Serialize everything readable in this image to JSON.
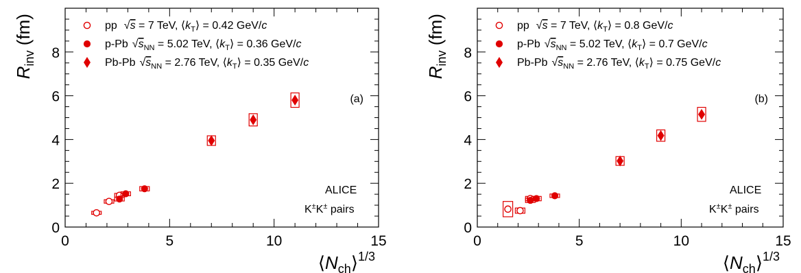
{
  "chart_data": [
    {
      "type": "scatter",
      "panel_label": "(a)",
      "xlim": [
        0,
        15
      ],
      "ylim": [
        0,
        10
      ],
      "xticks": [
        "0",
        "5",
        "10",
        "15"
      ],
      "yticks": [
        "0",
        "2",
        "4",
        "6",
        "8"
      ],
      "xlabel": "⟨Nch⟩1/3",
      "ylabel": "Rinv (fm)",
      "experiment": "ALICE",
      "pair_label": "K±K± pairs",
      "legend": [
        {
          "system": "pp",
          "energy": "√s = 7 TeV",
          "kt": "⟨kT⟩ = 0.42 GeV/c",
          "marker": "open-circle"
        },
        {
          "system": "p-Pb",
          "energy": "√sNN = 5.02 TeV",
          "kt": "⟨kT⟩ = 0.36 GeV/c",
          "marker": "filled-circle"
        },
        {
          "system": "Pb-Pb",
          "energy": "√sNN = 2.76 TeV",
          "kt": "⟨kT⟩ = 0.35 GeV/c",
          "marker": "filled-diamond"
        }
      ],
      "series": [
        {
          "marker": "open-circle",
          "x": [
            1.5,
            2.1,
            2.6
          ],
          "y": [
            0.65,
            1.17,
            1.45
          ],
          "sys_y": [
            0.07,
            0.08,
            0.09
          ]
        },
        {
          "marker": "filled-circle",
          "x": [
            2.6,
            2.9,
            3.8
          ],
          "y": [
            1.28,
            1.52,
            1.75
          ],
          "sys_y": [
            0.09,
            0.09,
            0.1
          ]
        },
        {
          "marker": "filled-diamond",
          "x": [
            7.0,
            9.0,
            11.0
          ],
          "y": [
            3.95,
            4.9,
            5.8
          ],
          "sys_y": [
            0.22,
            0.28,
            0.33
          ]
        }
      ]
    },
    {
      "type": "scatter",
      "panel_label": "(b)",
      "xlim": [
        0,
        15
      ],
      "ylim": [
        0,
        10
      ],
      "xticks": [
        "0",
        "5",
        "10",
        "15"
      ],
      "yticks": [
        "0",
        "2",
        "4",
        "6",
        "8"
      ],
      "xlabel": "⟨Nch⟩1/3",
      "ylabel": "Rinv (fm)",
      "experiment": "ALICE",
      "pair_label": "K±K± pairs",
      "legend": [
        {
          "system": "pp",
          "energy": "√s = 7 TeV",
          "kt": "⟨kT⟩ = 0.8 GeV/c",
          "marker": "open-circle"
        },
        {
          "system": "p-Pb",
          "energy": "√sNN = 5.02 TeV",
          "kt": "⟨kT⟩ = 0.7 GeV/c",
          "marker": "filled-circle"
        },
        {
          "system": "Pb-Pb",
          "energy": "√sNN = 2.76 TeV",
          "kt": "⟨kT⟩ = 0.75 GeV/c",
          "marker": "filled-diamond"
        }
      ],
      "series": [
        {
          "marker": "open-circle",
          "x": [
            1.5,
            2.1,
            2.6
          ],
          "y": [
            0.82,
            0.75,
            1.3
          ],
          "sys_y": [
            0.35,
            0.12,
            0.1
          ]
        },
        {
          "marker": "filled-circle",
          "x": [
            2.6,
            2.9,
            3.8
          ],
          "y": [
            1.22,
            1.3,
            1.43
          ],
          "sys_y": [
            0.1,
            0.1,
            0.08
          ]
        },
        {
          "marker": "filled-diamond",
          "x": [
            7.0,
            9.0,
            11.0
          ],
          "y": [
            3.02,
            4.18,
            5.15
          ],
          "sys_y": [
            0.2,
            0.26,
            0.32
          ]
        }
      ]
    }
  ]
}
